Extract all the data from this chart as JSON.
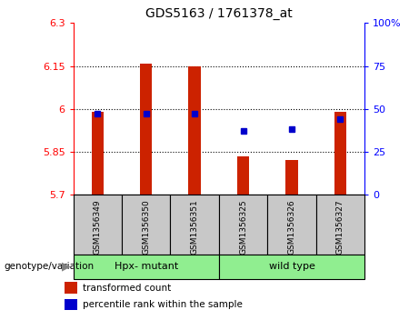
{
  "title": "GDS5163 / 1761378_at",
  "samples": [
    "GSM1356349",
    "GSM1356350",
    "GSM1356351",
    "GSM1356325",
    "GSM1356326",
    "GSM1356327"
  ],
  "bar_values": [
    5.99,
    6.157,
    6.148,
    5.835,
    5.82,
    5.99
  ],
  "bar_base": 5.7,
  "percentile_values": [
    47,
    47,
    47,
    37,
    38,
    44
  ],
  "ylim": [
    5.7,
    6.3
  ],
  "y_ticks": [
    5.7,
    5.85,
    6.0,
    6.15,
    6.3
  ],
  "y_tick_labels": [
    "5.7",
    "5.85",
    "6",
    "6.15",
    "6.3"
  ],
  "right_y_ticks": [
    0,
    25,
    50,
    75,
    100
  ],
  "right_y_tick_labels": [
    "0",
    "25",
    "50",
    "75",
    "100%"
  ],
  "bar_color": "#CC2200",
  "dot_color": "#0000CC",
  "legend_items": [
    "transformed count",
    "percentile rank within the sample"
  ],
  "genotype_label": "genotype/variation",
  "group_label_mutant": "Hpx- mutant",
  "group_label_wild": "wild type",
  "grid_yticks": [
    5.85,
    6.0,
    6.15
  ],
  "bar_width": 0.25
}
